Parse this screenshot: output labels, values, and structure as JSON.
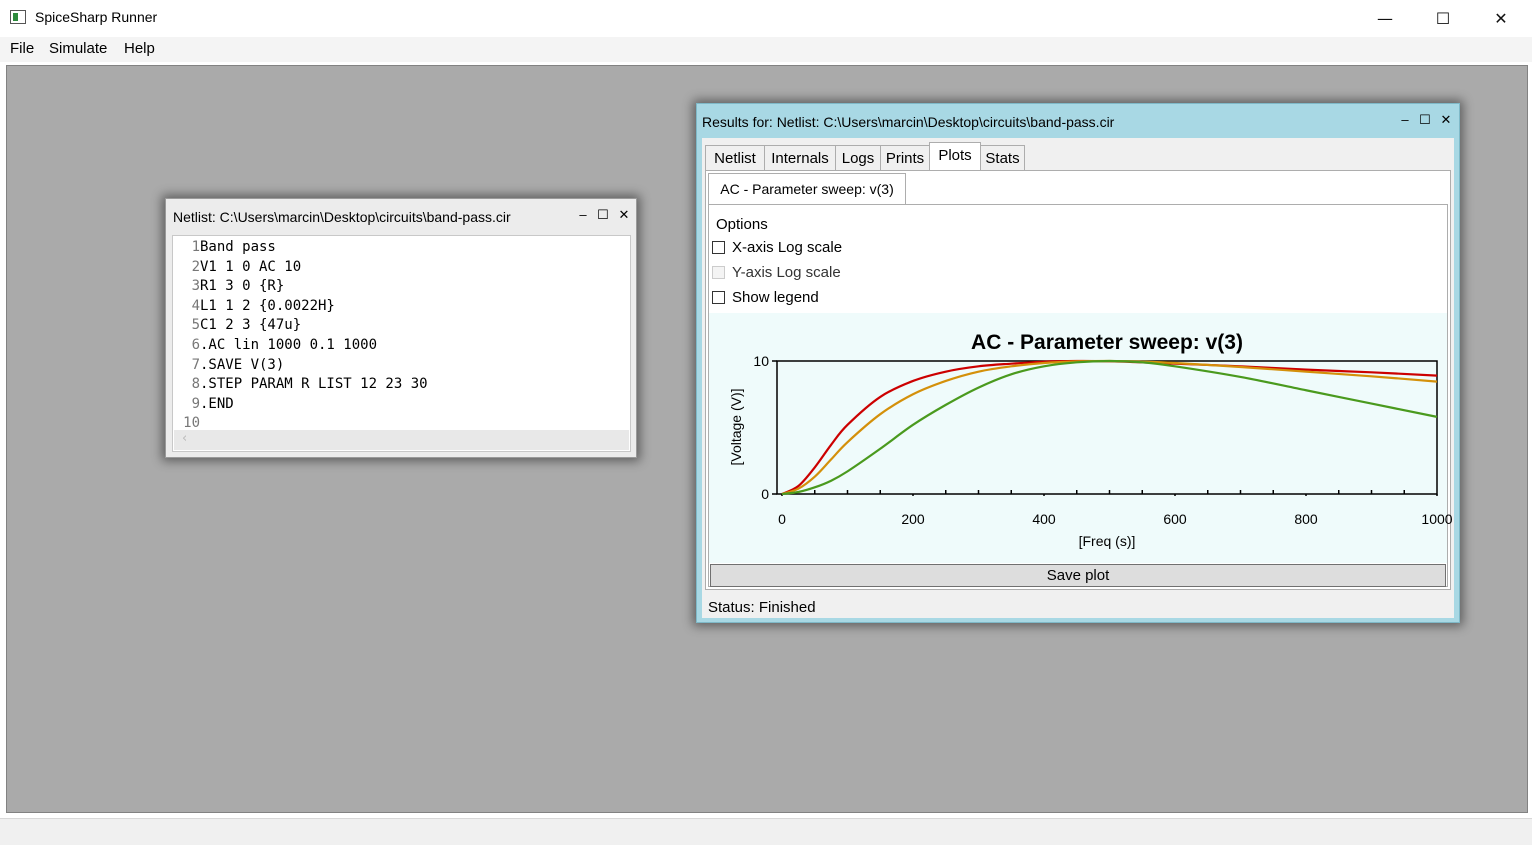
{
  "app": {
    "title": "SpiceSharp Runner",
    "controls": {
      "minimize": "—",
      "maximize": "☐",
      "close": "✕"
    }
  },
  "menu": {
    "items": [
      "File",
      "Simulate",
      "Help"
    ]
  },
  "netlist_window": {
    "title": "Netlist: C:\\Users\\marcin\\Desktop\\circuits\\band-pass.cir",
    "controls": {
      "minimize": "–",
      "maximize": "☐",
      "close": "✕"
    },
    "line_numbers": [
      "1",
      "2",
      "3",
      "4",
      "5",
      "6",
      "7",
      "8",
      "9",
      "10"
    ],
    "lines": [
      "Band pass",
      "V1 1 0 AC 10",
      "R1 3 0 {R}",
      "L1 1 2 {0.0022H}",
      "C1 2 3 {47u}",
      ".AC lin 1000 0.1 1000",
      ".SAVE V(3)",
      ".STEP PARAM R LIST 12 23 30",
      ".END",
      ""
    ],
    "scroll_arrow": "‹"
  },
  "results_window": {
    "title": "Results for: Netlist: C:\\Users\\marcin\\Desktop\\circuits\\band-pass.cir",
    "controls": {
      "minimize": "–",
      "maximize": "☐",
      "close": "✕"
    },
    "tabs": [
      "Netlist",
      "Internals",
      "Logs",
      "Prints",
      "Plots",
      "Stats"
    ],
    "selected_tab": "Plots",
    "subtab": "AC - Parameter sweep: v(3)",
    "options": {
      "title": "Options",
      "items": [
        {
          "label": "X-axis Log scale",
          "checked": false,
          "enabled": true
        },
        {
          "label": "Y-axis Log scale",
          "checked": false,
          "enabled": false
        },
        {
          "label": "Show legend",
          "checked": false,
          "enabled": true
        }
      ]
    },
    "save_button": "Save plot",
    "status": "Status: Finished"
  },
  "chart_data": {
    "type": "line",
    "title": "AC - Parameter sweep: v(3)",
    "xlabel": "[Freq (s)]",
    "ylabel": "[Voltage (V)]",
    "xlim": [
      0,
      1000
    ],
    "ylim": [
      0,
      10
    ],
    "x_ticks": [
      0,
      200,
      400,
      600,
      800,
      1000
    ],
    "y_ticks": [
      0,
      10
    ],
    "legend": false,
    "grid": false,
    "series": [
      {
        "color": "#cc0000",
        "x": [
          0,
          25,
          50,
          75,
          100,
          150,
          200,
          250,
          300,
          350,
          400,
          450,
          500,
          550,
          600,
          700,
          800,
          900,
          1000
        ],
        "values": [
          0,
          0.6,
          2.0,
          3.7,
          5.2,
          7.3,
          8.5,
          9.2,
          9.6,
          9.8,
          9.95,
          10.0,
          9.98,
          9.9,
          9.8,
          9.6,
          9.35,
          9.15,
          8.9
        ]
      },
      {
        "color": "#d4900a",
        "x": [
          0,
          25,
          50,
          75,
          100,
          150,
          200,
          250,
          300,
          350,
          400,
          450,
          500,
          550,
          600,
          700,
          800,
          900,
          1000
        ],
        "values": [
          0,
          0.4,
          1.3,
          2.6,
          3.9,
          6.0,
          7.5,
          8.5,
          9.2,
          9.6,
          9.85,
          9.97,
          10.0,
          9.95,
          9.85,
          9.55,
          9.2,
          8.85,
          8.45
        ]
      },
      {
        "color": "#4a9a1e",
        "x": [
          0,
          25,
          50,
          75,
          100,
          150,
          200,
          250,
          300,
          350,
          400,
          450,
          500,
          550,
          600,
          700,
          800,
          900,
          1000
        ],
        "values": [
          0,
          0.15,
          0.5,
          1.0,
          1.7,
          3.4,
          5.2,
          6.7,
          8.0,
          9.0,
          9.6,
          9.9,
          10.0,
          9.9,
          9.6,
          8.8,
          7.8,
          6.8,
          5.8
        ]
      }
    ]
  }
}
